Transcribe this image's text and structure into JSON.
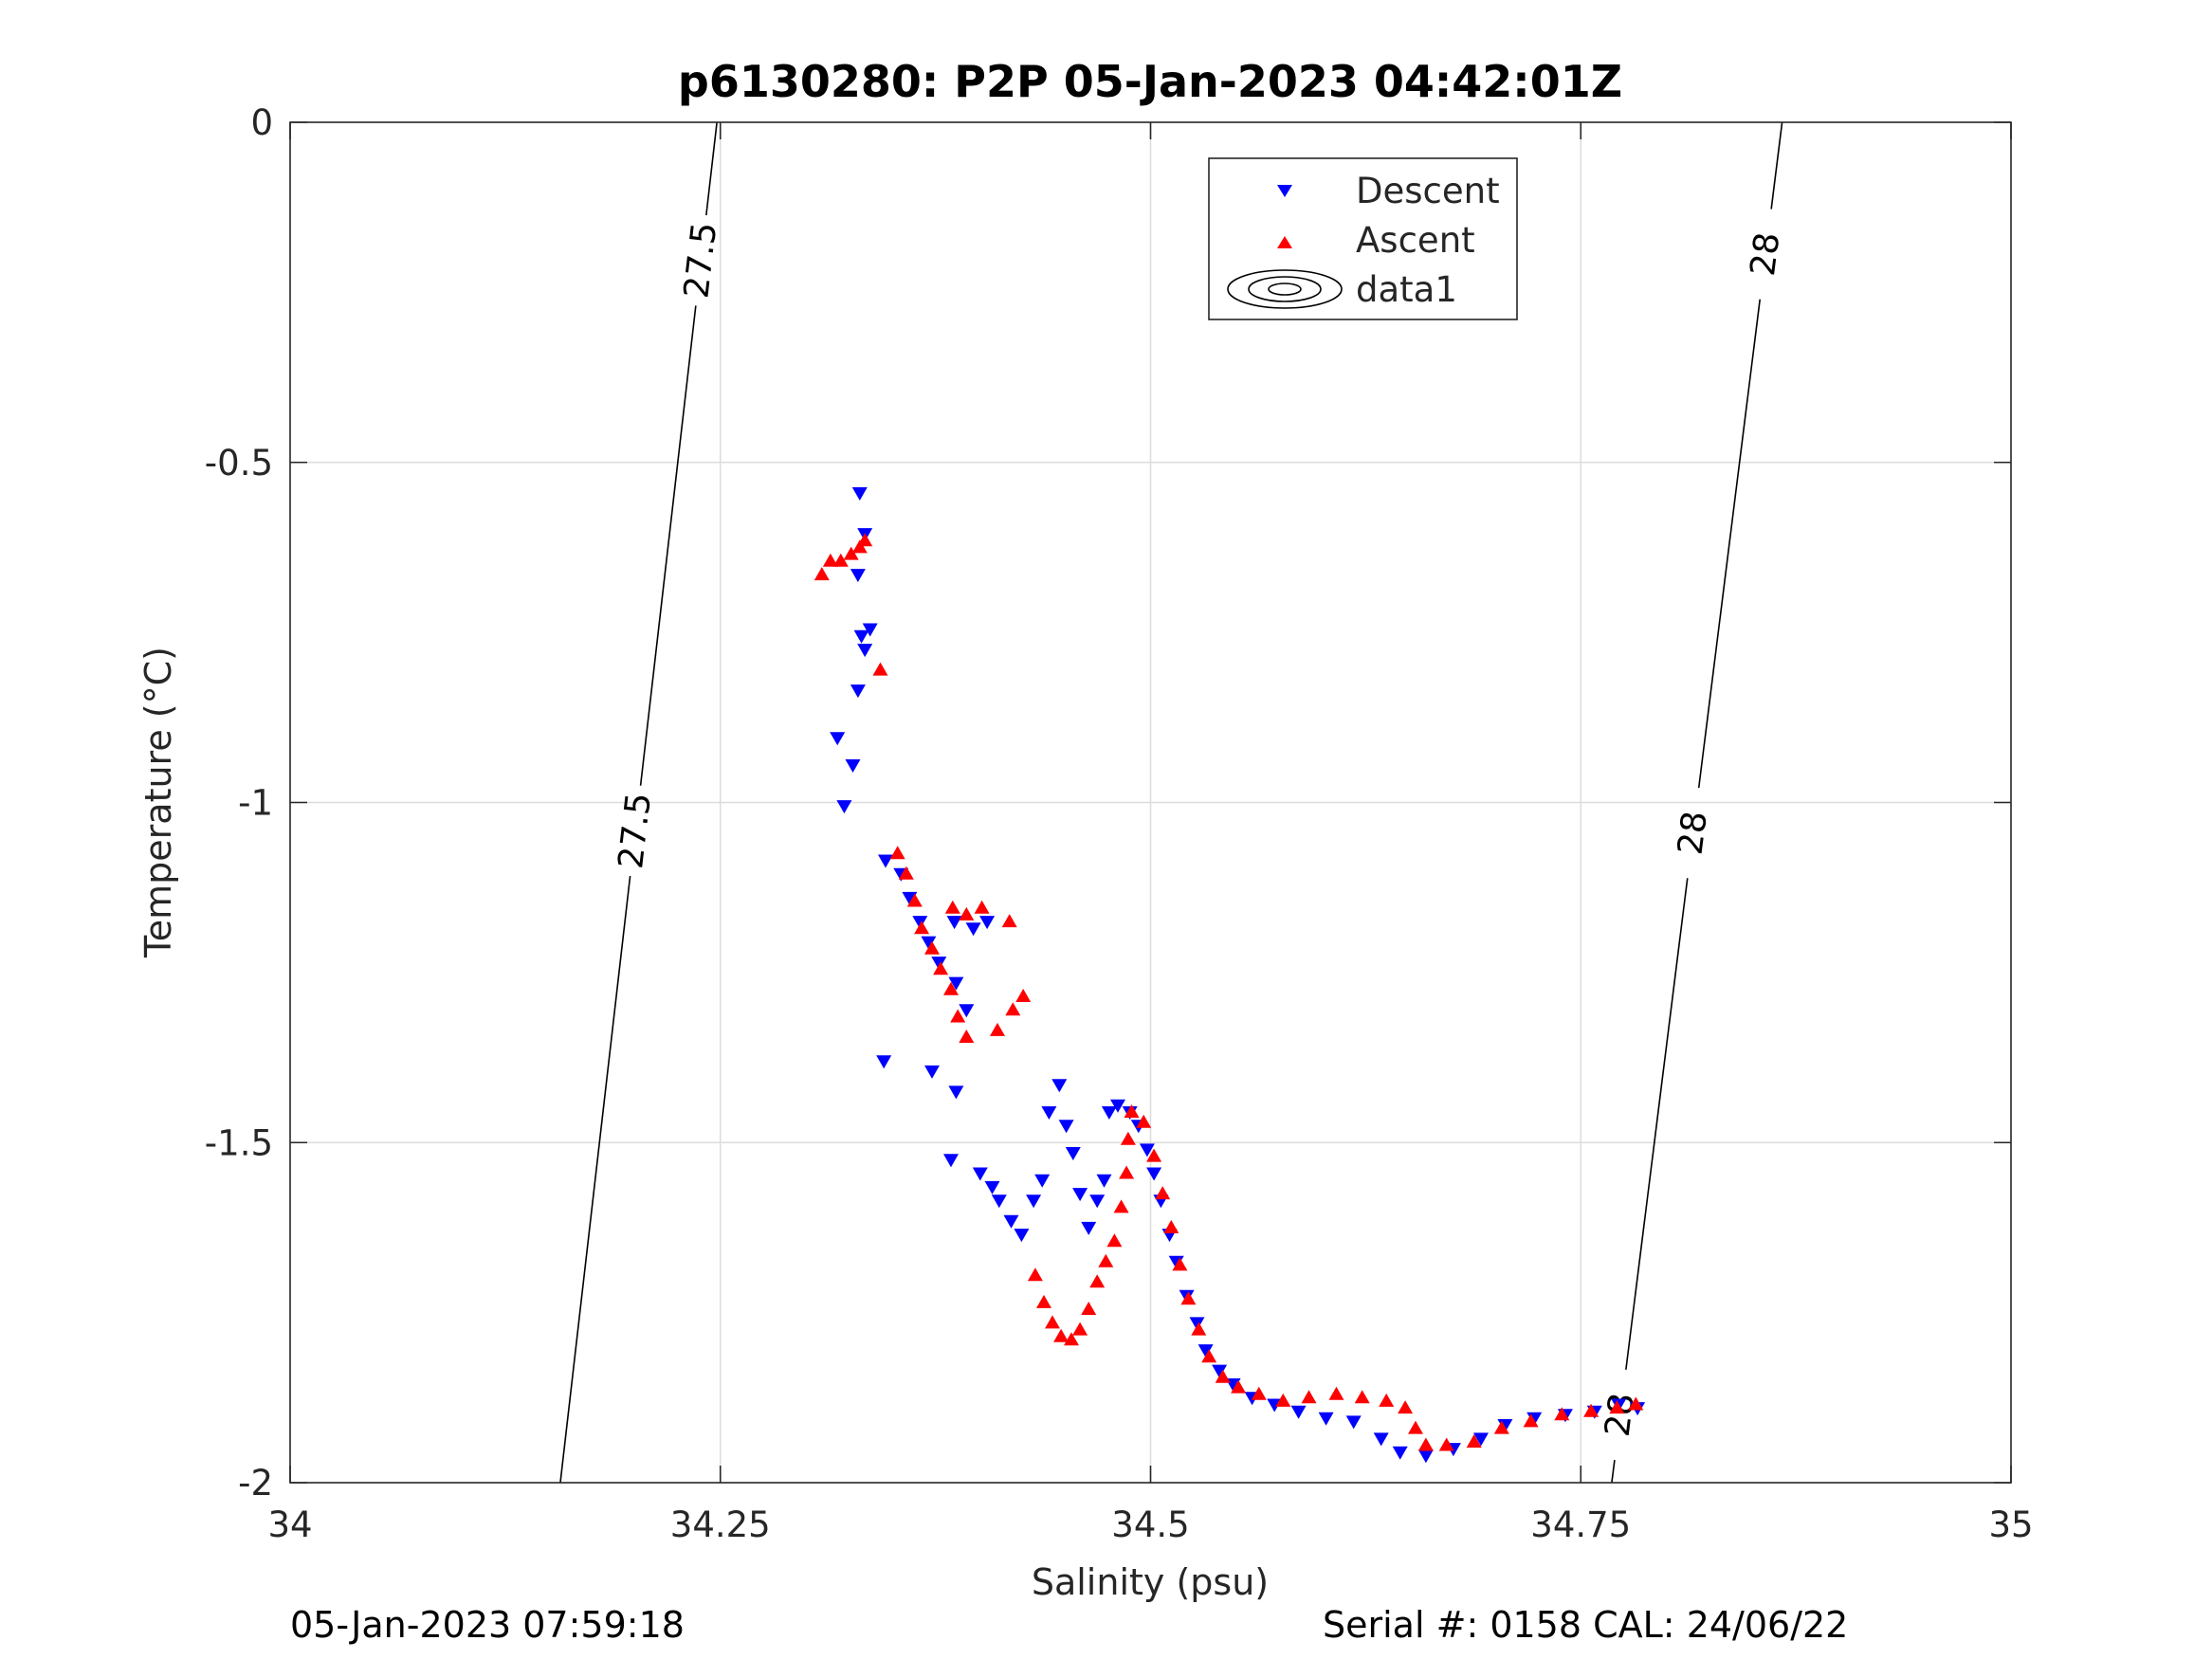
{
  "chart_data": {
    "type": "scatter",
    "title": "p6130280: P2P 05-Jan-2023 04:42:01Z",
    "xlabel": "Salinity (psu)",
    "ylabel": "Temperature (°C)",
    "xlim": [
      34,
      35
    ],
    "ylim": [
      -2,
      0
    ],
    "x_ticks": [
      "34",
      "34.25",
      "34.5",
      "34.75",
      "35"
    ],
    "y_ticks": [
      "0",
      "-0.5",
      "-1",
      "-1.5",
      "-2"
    ],
    "grid": true,
    "legend_position": "top-right",
    "legend": [
      "Descent",
      "Ascent",
      "data1"
    ],
    "colors": {
      "descent": "#0000ff",
      "ascent": "#ff0000",
      "contour": "#000000"
    },
    "contours": [
      {
        "level": "27.5",
        "points": [
          [
            34.248,
            0
          ],
          [
            34.157,
            -2
          ]
        ],
        "labels": [
          [
            34.228,
            -0.2
          ],
          [
            34.195,
            -1.04
          ]
        ]
      },
      {
        "level": "28",
        "points": [
          [
            34.867,
            0
          ],
          [
            34.768,
            -2
          ]
        ],
        "labels": [
          [
            34.845,
            -0.19
          ],
          [
            34.8,
            -1.04
          ],
          [
            34.772,
            -1.9
          ]
        ]
      }
    ],
    "series": [
      {
        "name": "Descent",
        "marker": "triangle-down",
        "points": [
          [
            34.331,
            -0.545
          ],
          [
            34.334,
            -0.605
          ],
          [
            34.33,
            -0.665
          ],
          [
            34.337,
            -0.745
          ],
          [
            34.332,
            -0.755
          ],
          [
            34.334,
            -0.775
          ],
          [
            34.33,
            -0.835
          ],
          [
            34.318,
            -0.905
          ],
          [
            34.327,
            -0.945
          ],
          [
            34.322,
            -1.005
          ],
          [
            34.346,
            -1.085
          ],
          [
            34.355,
            -1.105
          ],
          [
            34.36,
            -1.14
          ],
          [
            34.366,
            -1.175
          ],
          [
            34.371,
            -1.205
          ],
          [
            34.377,
            -1.235
          ],
          [
            34.387,
            -1.265
          ],
          [
            34.393,
            -1.305
          ],
          [
            34.386,
            -1.175
          ],
          [
            34.397,
            -1.185
          ],
          [
            34.405,
            -1.175
          ],
          [
            34.345,
            -1.38
          ],
          [
            34.373,
            -1.395
          ],
          [
            34.387,
            -1.425
          ],
          [
            34.384,
            -1.525
          ],
          [
            34.401,
            -1.545
          ],
          [
            34.408,
            -1.565
          ],
          [
            34.412,
            -1.585
          ],
          [
            34.419,
            -1.615
          ],
          [
            34.425,
            -1.635
          ],
          [
            34.432,
            -1.585
          ],
          [
            34.437,
            -1.555
          ],
          [
            34.441,
            -1.455
          ],
          [
            34.447,
            -1.415
          ],
          [
            34.451,
            -1.475
          ],
          [
            34.455,
            -1.515
          ],
          [
            34.459,
            -1.575
          ],
          [
            34.464,
            -1.625
          ],
          [
            34.469,
            -1.585
          ],
          [
            34.473,
            -1.555
          ],
          [
            34.476,
            -1.455
          ],
          [
            34.481,
            -1.445
          ],
          [
            34.488,
            -1.455
          ],
          [
            34.493,
            -1.475
          ],
          [
            34.498,
            -1.51
          ],
          [
            34.502,
            -1.545
          ],
          [
            34.506,
            -1.585
          ],
          [
            34.511,
            -1.635
          ],
          [
            34.515,
            -1.675
          ],
          [
            34.521,
            -1.725
          ],
          [
            34.527,
            -1.765
          ],
          [
            34.532,
            -1.805
          ],
          [
            34.54,
            -1.835
          ],
          [
            34.548,
            -1.855
          ],
          [
            34.559,
            -1.875
          ],
          [
            34.572,
            -1.885
          ],
          [
            34.586,
            -1.895
          ],
          [
            34.602,
            -1.905
          ],
          [
            34.618,
            -1.91
          ],
          [
            34.634,
            -1.935
          ],
          [
            34.645,
            -1.955
          ],
          [
            34.66,
            -1.96
          ],
          [
            34.676,
            -1.95
          ],
          [
            34.692,
            -1.935
          ],
          [
            34.706,
            -1.915
          ],
          [
            34.723,
            -1.905
          ],
          [
            34.741,
            -1.9
          ],
          [
            34.758,
            -1.895
          ],
          [
            34.772,
            -1.885
          ],
          [
            34.783,
            -1.89
          ]
        ]
      },
      {
        "name": "Ascent",
        "marker": "triangle-up",
        "points": [
          [
            34.309,
            -0.665
          ],
          [
            34.314,
            -0.645
          ],
          [
            34.32,
            -0.645
          ],
          [
            34.326,
            -0.635
          ],
          [
            34.331,
            -0.625
          ],
          [
            34.334,
            -0.615
          ],
          [
            34.343,
            -0.805
          ],
          [
            34.353,
            -1.075
          ],
          [
            34.358,
            -1.105
          ],
          [
            34.363,
            -1.145
          ],
          [
            34.367,
            -1.185
          ],
          [
            34.373,
            -1.215
          ],
          [
            34.378,
            -1.245
          ],
          [
            34.384,
            -1.275
          ],
          [
            34.388,
            -1.315
          ],
          [
            34.393,
            -1.345
          ],
          [
            34.385,
            -1.155
          ],
          [
            34.393,
            -1.165
          ],
          [
            34.402,
            -1.155
          ],
          [
            34.418,
            -1.175
          ],
          [
            34.411,
            -1.335
          ],
          [
            34.42,
            -1.305
          ],
          [
            34.426,
            -1.285
          ],
          [
            34.433,
            -1.695
          ],
          [
            34.438,
            -1.735
          ],
          [
            34.443,
            -1.765
          ],
          [
            34.448,
            -1.785
          ],
          [
            34.454,
            -1.79
          ],
          [
            34.459,
            -1.775
          ],
          [
            34.464,
            -1.745
          ],
          [
            34.469,
            -1.705
          ],
          [
            34.474,
            -1.675
          ],
          [
            34.479,
            -1.645
          ],
          [
            34.483,
            -1.595
          ],
          [
            34.486,
            -1.545
          ],
          [
            34.487,
            -1.495
          ],
          [
            34.489,
            -1.455
          ],
          [
            34.496,
            -1.47
          ],
          [
            34.502,
            -1.52
          ],
          [
            34.507,
            -1.575
          ],
          [
            34.512,
            -1.625
          ],
          [
            34.517,
            -1.68
          ],
          [
            34.522,
            -1.73
          ],
          [
            34.528,
            -1.775
          ],
          [
            34.534,
            -1.815
          ],
          [
            34.542,
            -1.845
          ],
          [
            34.551,
            -1.86
          ],
          [
            34.563,
            -1.87
          ],
          [
            34.577,
            -1.88
          ],
          [
            34.592,
            -1.875
          ],
          [
            34.608,
            -1.87
          ],
          [
            34.623,
            -1.875
          ],
          [
            34.637,
            -1.88
          ],
          [
            34.648,
            -1.89
          ],
          [
            34.654,
            -1.92
          ],
          [
            34.66,
            -1.945
          ],
          [
            34.672,
            -1.945
          ],
          [
            34.688,
            -1.94
          ],
          [
            34.704,
            -1.92
          ],
          [
            34.721,
            -1.91
          ],
          [
            34.739,
            -1.9
          ],
          [
            34.756,
            -1.895
          ],
          [
            34.771,
            -1.89
          ],
          [
            34.782,
            -1.885
          ]
        ]
      }
    ]
  },
  "footer": {
    "left": "05-Jan-2023 07:59:18",
    "right": "Serial #: 0158  CAL: 24/06/22"
  }
}
